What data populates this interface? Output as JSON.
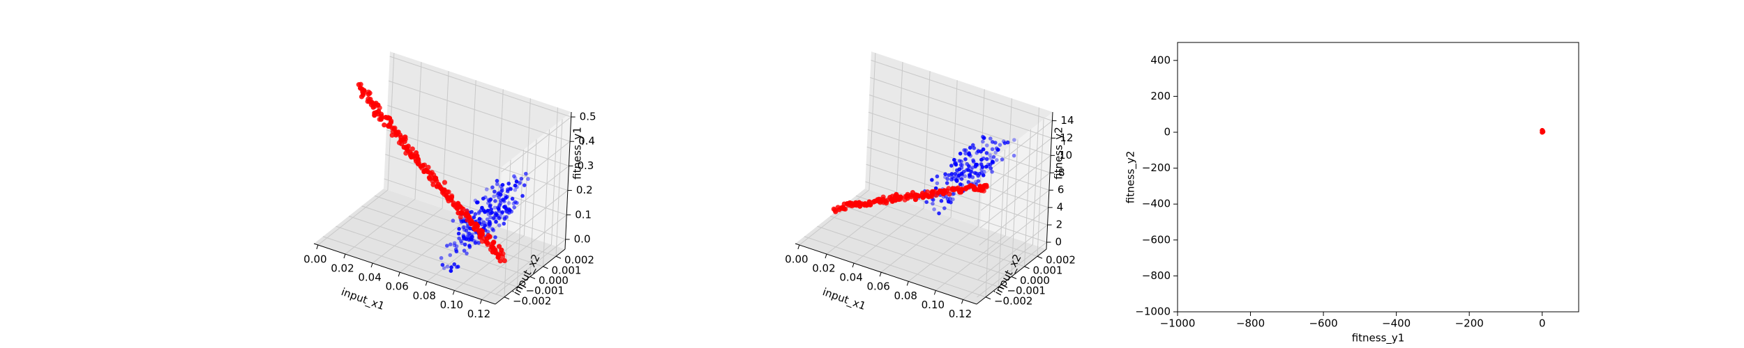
{
  "chart_data": [
    {
      "type": "scatter3d",
      "xlabel": "input_x1",
      "ylabel": "input_x2",
      "zlabel": "fitness_y1",
      "xticks": [
        "0.00",
        "0.02",
        "0.04",
        "0.06",
        "0.08",
        "0.10",
        "0.12"
      ],
      "yticks": [
        "−0.002",
        "−0.001",
        "0.000",
        "0.001",
        "0.002"
      ],
      "zticks": [
        "0.0",
        "0.1",
        "0.2",
        "0.3",
        "0.4",
        "0.5"
      ],
      "xlim": [
        -0.003,
        0.13
      ],
      "ylim": [
        -0.0027,
        0.0027
      ],
      "zlim": [
        -0.04,
        0.52
      ],
      "series": [
        {
          "color": "#0000ff",
          "cloud": {
            "x": [
              0.08,
              0.11
            ],
            "y": [
              -0.0025,
              0.0025
            ],
            "z": [
              0.0,
              0.26
            ],
            "count": 220
          }
        },
        {
          "color": "#ff0000",
          "curve": {
            "x": [
              0.0,
              0.11
            ],
            "y": [
              0.0,
              0.0
            ],
            "z": [
              0.5,
              0.0
            ],
            "count": 210
          }
        }
      ]
    },
    {
      "type": "scatter3d",
      "xlabel": "input_x1",
      "ylabel": "input_x2",
      "zlabel": "fitness_y2",
      "xticks": [
        "0.00",
        "0.02",
        "0.04",
        "0.06",
        "0.08",
        "0.10",
        "0.12"
      ],
      "yticks": [
        "−0.002",
        "−0.001",
        "0.000",
        "0.001",
        "0.002"
      ],
      "zticks": [
        "0",
        "2",
        "4",
        "6",
        "8",
        "10",
        "12",
        "14"
      ],
      "xlim": [
        -0.003,
        0.13
      ],
      "ylim": [
        -0.0027,
        0.0027
      ],
      "zlim": [
        -0.8,
        15
      ],
      "series": [
        {
          "color": "#0000ff",
          "cloud": {
            "x": [
              0.06,
              0.115
            ],
            "y": [
              -0.0012,
              0.0022
            ],
            "z": [
              5,
              11.5
            ],
            "count": 160
          }
        },
        {
          "color": "#ff0000",
          "curve": {
            "x": [
              0.0,
              0.11
            ],
            "y": [
              0.0,
              0.0
            ],
            "z": [
              0.0,
              8.5
            ],
            "count": 150
          }
        }
      ]
    },
    {
      "type": "scatter",
      "xlabel": "fitness_y1",
      "ylabel": "fitness_y2",
      "xlim": [
        -1000,
        100
      ],
      "ylim": [
        -1000,
        500
      ],
      "xticks": [
        -1000,
        -800,
        -600,
        -400,
        -200,
        0
      ],
      "yticks": [
        -1000,
        -800,
        -600,
        -400,
        -200,
        0,
        200,
        400
      ],
      "series": [
        {
          "color": "#ff0000",
          "points": [
            [
              0,
              0
            ],
            [
              1,
              5
            ],
            [
              0,
              10
            ],
            [
              2,
              3
            ],
            [
              1,
              8
            ]
          ]
        }
      ]
    }
  ]
}
